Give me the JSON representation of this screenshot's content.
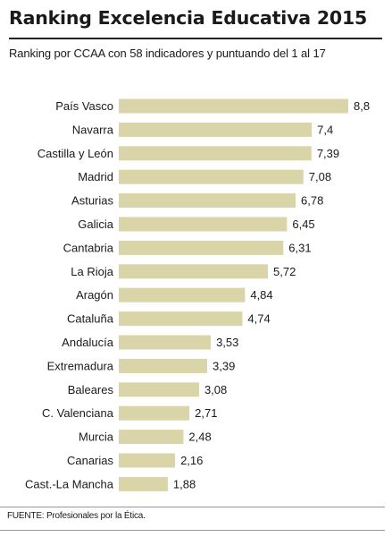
{
  "header": {
    "title": "Ranking Excelencia Educativa 2015",
    "subtitle": "Ranking por CCAA con 58 indicadores y puntuando del 1 al 17"
  },
  "footer": {
    "source": "FUENTE: Profesionales por la Ética."
  },
  "colors": {
    "bar": "#d9d5a8",
    "text": "#1a1a1a"
  },
  "chart_data": {
    "type": "bar",
    "orientation": "horizontal",
    "categories": [
      "País Vasco",
      "Navarra",
      "Castilla y León",
      "Madrid",
      "Asturias",
      "Galicia",
      "Cantabria",
      "La Rioja",
      "Aragón",
      "Cataluña",
      "Andalucía",
      "Extremadura",
      "Baleares",
      "C. Valenciana",
      "Murcia",
      "Canarias",
      "Cast.-La Mancha"
    ],
    "values": [
      8.8,
      7.4,
      7.39,
      7.08,
      6.78,
      6.45,
      6.31,
      5.72,
      4.84,
      4.74,
      3.53,
      3.39,
      3.08,
      2.71,
      2.48,
      2.16,
      1.88
    ],
    "value_labels": [
      "8,8",
      "7,4",
      "7,39",
      "7,08",
      "6,78",
      "6,45",
      "6,31",
      "5,72",
      "4,84",
      "4,74",
      "3,53",
      "3,39",
      "3,08",
      "2,71",
      "2,48",
      "2,16",
      "1,88"
    ],
    "xlim": [
      0,
      8.8
    ],
    "grid": false,
    "legend": "none"
  }
}
